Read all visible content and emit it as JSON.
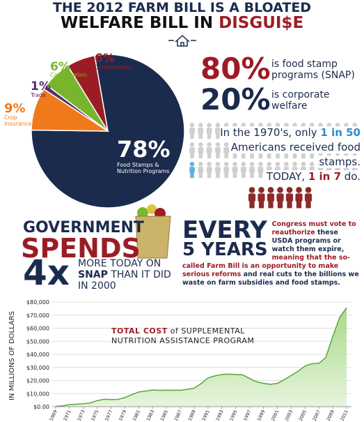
{
  "header": {
    "title_line1": "THE 2012 FARM BILL IS A BLOATED",
    "title_line2": [
      "WELFARE BILL IN ",
      "DISGUI$E"
    ]
  },
  "chart_data": [
    {
      "type": "pie",
      "categories": [
        "Food Stamps & Nutrition Programs",
        "Crop Insurance",
        "Trade",
        "Conservation",
        "Commodities"
      ],
      "values": [
        78,
        9,
        1,
        6,
        6
      ],
      "value_labels": [
        "78%",
        "9%",
        "1%",
        "6%",
        "6%"
      ],
      "colors": [
        "#1b2b4e",
        "#f07a1a",
        "#5a2a6c",
        "#78b52c",
        "#9c1c26"
      ]
    },
    {
      "type": "area",
      "title": [
        "TOTAL COST",
        " of SUPPLEMENTAL NUTRITION ASSISTANCE PROGRAM"
      ],
      "y_label": "IN MILLIONS OF DOLLARS",
      "x": [
        1969,
        1970,
        1971,
        1972,
        1973,
        1974,
        1975,
        1976,
        1977,
        1978,
        1979,
        1980,
        1981,
        1982,
        1983,
        1984,
        1985,
        1986,
        1987,
        1988,
        1989,
        1990,
        1991,
        1992,
        1993,
        1994,
        1995,
        1996,
        1997,
        1998,
        1999,
        2000,
        2001,
        2002,
        2003,
        2004,
        2005,
        2006,
        2007,
        2008,
        2009,
        2010,
        2011
      ],
      "values": [
        250,
        577,
        1577,
        1866,
        2207,
        2837,
        4619,
        5685,
        5469,
        5519,
        6940,
        9206,
        11225,
        11850,
        12733,
        12470,
        12599,
        12528,
        12539,
        13289,
        14143,
        17686,
        21983,
        23539,
        24627,
        24884,
        24620,
        24331,
        21494,
        18988,
        17821,
        17054,
        17788,
        20637,
        23816,
        27099,
        31072,
        32903,
        33174,
        37640,
        53620,
        68284,
        75687
      ],
      "color": "#5aa33c",
      "xlim": [
        1969,
        2011
      ],
      "xticks": [
        1969,
        1971,
        1973,
        1975,
        1977,
        1979,
        1981,
        1983,
        1985,
        1987,
        1989,
        1991,
        1993,
        1995,
        1997,
        1999,
        2001,
        2003,
        2005,
        2007,
        2009,
        2011
      ],
      "ylim": [
        0,
        80000
      ],
      "yticks": [
        {
          "value": 0,
          "label": "$0.00"
        },
        {
          "value": 10000,
          "label": "$10,000"
        },
        {
          "value": 20000,
          "label": "$20,000"
        },
        {
          "value": 30000,
          "label": "$30,000"
        },
        {
          "value": 40000,
          "label": "$40,000"
        },
        {
          "value": 50000,
          "label": "$50,000"
        },
        {
          "value": 60000,
          "label": "$60,000"
        },
        {
          "value": 70000,
          "label": "$70,000"
        },
        {
          "value": 80000,
          "label": "$80,000"
        }
      ],
      "grid": true
    }
  ],
  "stats": [
    {
      "value": "80%",
      "text": "is food stamp programs (SNAP)"
    },
    {
      "value": "20%",
      "text": "is corporate welfare"
    }
  ],
  "people": {
    "parts": [
      "In the 1970's, only ",
      "1 in 50",
      " Americans received food stamps.",
      "TODAY, ",
      "1 in 7",
      " do."
    ]
  },
  "spending": {
    "line1": "GOVERNMENT",
    "line2": "SPENDS",
    "multiplier": "4x",
    "text": [
      "MORE TODAY ON ",
      "SNAP",
      " THAN IT DID IN 2000"
    ]
  },
  "reauthorize": {
    "heading": [
      "EVERY",
      "5 YEARS"
    ],
    "text": [
      "Congress must vote to reauthorize",
      " these USDA programs or watch them expire, ",
      "meaning that the so-called Farm Bill is an opportunity to make serious reforms",
      " and real cuts to the billions we waste on farm subsidies and food stamps."
    ]
  }
}
